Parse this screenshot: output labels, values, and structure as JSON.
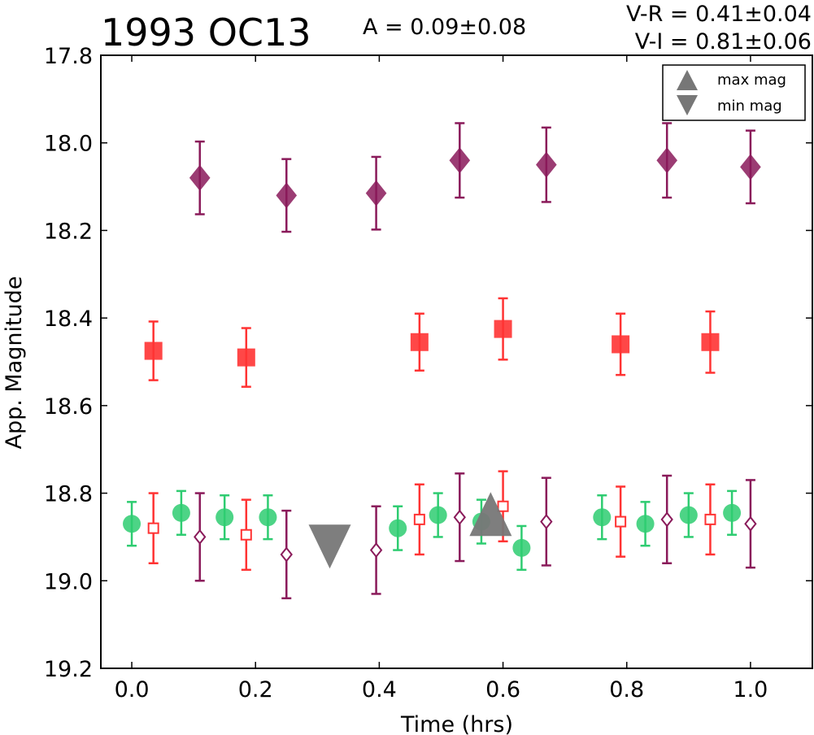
{
  "chart_data": {
    "type": "scatter",
    "title": "1993 OC13",
    "annotations": {
      "amplitude": "A  = 0.09±0.08",
      "v_r": "V-R = 0.41±0.04",
      "v_i": "V-I  = 0.81±0.06"
    },
    "xlabel": "Time (hrs)",
    "ylabel": "App. Magnitude",
    "xlim": [
      -0.05,
      1.1
    ],
    "ylim": [
      19.2,
      17.8
    ],
    "y_inverted": true,
    "xticks": [
      "0.0",
      "0.2",
      "0.4",
      "0.6",
      "0.8",
      "1.0"
    ],
    "xtick_values": [
      0.0,
      0.2,
      0.4,
      0.6,
      0.8,
      1.0
    ],
    "yticks": [
      "17.8",
      "18.0",
      "18.2",
      "18.4",
      "18.6",
      "18.8",
      "19.0",
      "19.2"
    ],
    "ytick_values": [
      17.8,
      18.0,
      18.2,
      18.4,
      18.6,
      18.8,
      19.0,
      19.2
    ],
    "grid": false,
    "legend_position": "top-right",
    "series": [
      {
        "marker": "diamond-filled",
        "color": "#8a1a5a",
        "x": [
          0.11,
          0.25,
          0.395,
          0.53,
          0.67,
          0.865,
          1.0
        ],
        "y": [
          18.08,
          18.12,
          18.115,
          18.04,
          18.05,
          18.04,
          18.055
        ],
        "err": [
          0.083,
          0.083,
          0.083,
          0.085,
          0.085,
          0.085,
          0.083
        ]
      },
      {
        "marker": "square-filled",
        "color": "#ff3333",
        "x": [
          0.035,
          0.185,
          0.465,
          0.6,
          0.79,
          0.935
        ],
        "y": [
          18.475,
          18.49,
          18.455,
          18.425,
          18.46,
          18.455
        ],
        "err": [
          0.067,
          0.067,
          0.065,
          0.07,
          0.07,
          0.07
        ]
      },
      {
        "marker": "circle-filled",
        "color": "#2ecc71",
        "x": [
          0.0,
          0.08,
          0.15,
          0.22,
          0.43,
          0.495,
          0.565,
          0.63,
          0.76,
          0.83,
          0.9,
          0.97
        ],
        "y": [
          18.87,
          18.845,
          18.855,
          18.855,
          18.88,
          18.85,
          18.865,
          18.925,
          18.855,
          18.87,
          18.85,
          18.845
        ],
        "err": [
          0.05,
          0.05,
          0.05,
          0.05,
          0.05,
          0.05,
          0.05,
          0.05,
          0.05,
          0.05,
          0.05,
          0.05
        ]
      },
      {
        "marker": "square-open",
        "color": "#ff3333",
        "x": [
          0.035,
          0.185,
          0.465,
          0.6,
          0.79,
          0.935
        ],
        "y": [
          18.88,
          18.895,
          18.86,
          18.83,
          18.865,
          18.86
        ],
        "err": [
          0.08,
          0.08,
          0.08,
          0.08,
          0.08,
          0.08
        ]
      },
      {
        "marker": "diamond-open",
        "color": "#8a1a5a",
        "x": [
          0.11,
          0.25,
          0.395,
          0.53,
          0.67,
          0.865,
          1.0
        ],
        "y": [
          18.9,
          18.94,
          18.93,
          18.855,
          18.865,
          18.86,
          18.87
        ],
        "err": [
          0.1,
          0.1,
          0.1,
          0.1,
          0.1,
          0.1,
          0.1
        ]
      }
    ],
    "extrema": [
      {
        "name": "max mag",
        "marker": "triangle-up",
        "color": "#777777",
        "x": 0.58,
        "y": 18.855
      },
      {
        "name": "min mag",
        "marker": "triangle-down",
        "color": "#777777",
        "x": 0.32,
        "y": 18.92
      }
    ],
    "legend": [
      "max mag",
      "min mag"
    ]
  }
}
